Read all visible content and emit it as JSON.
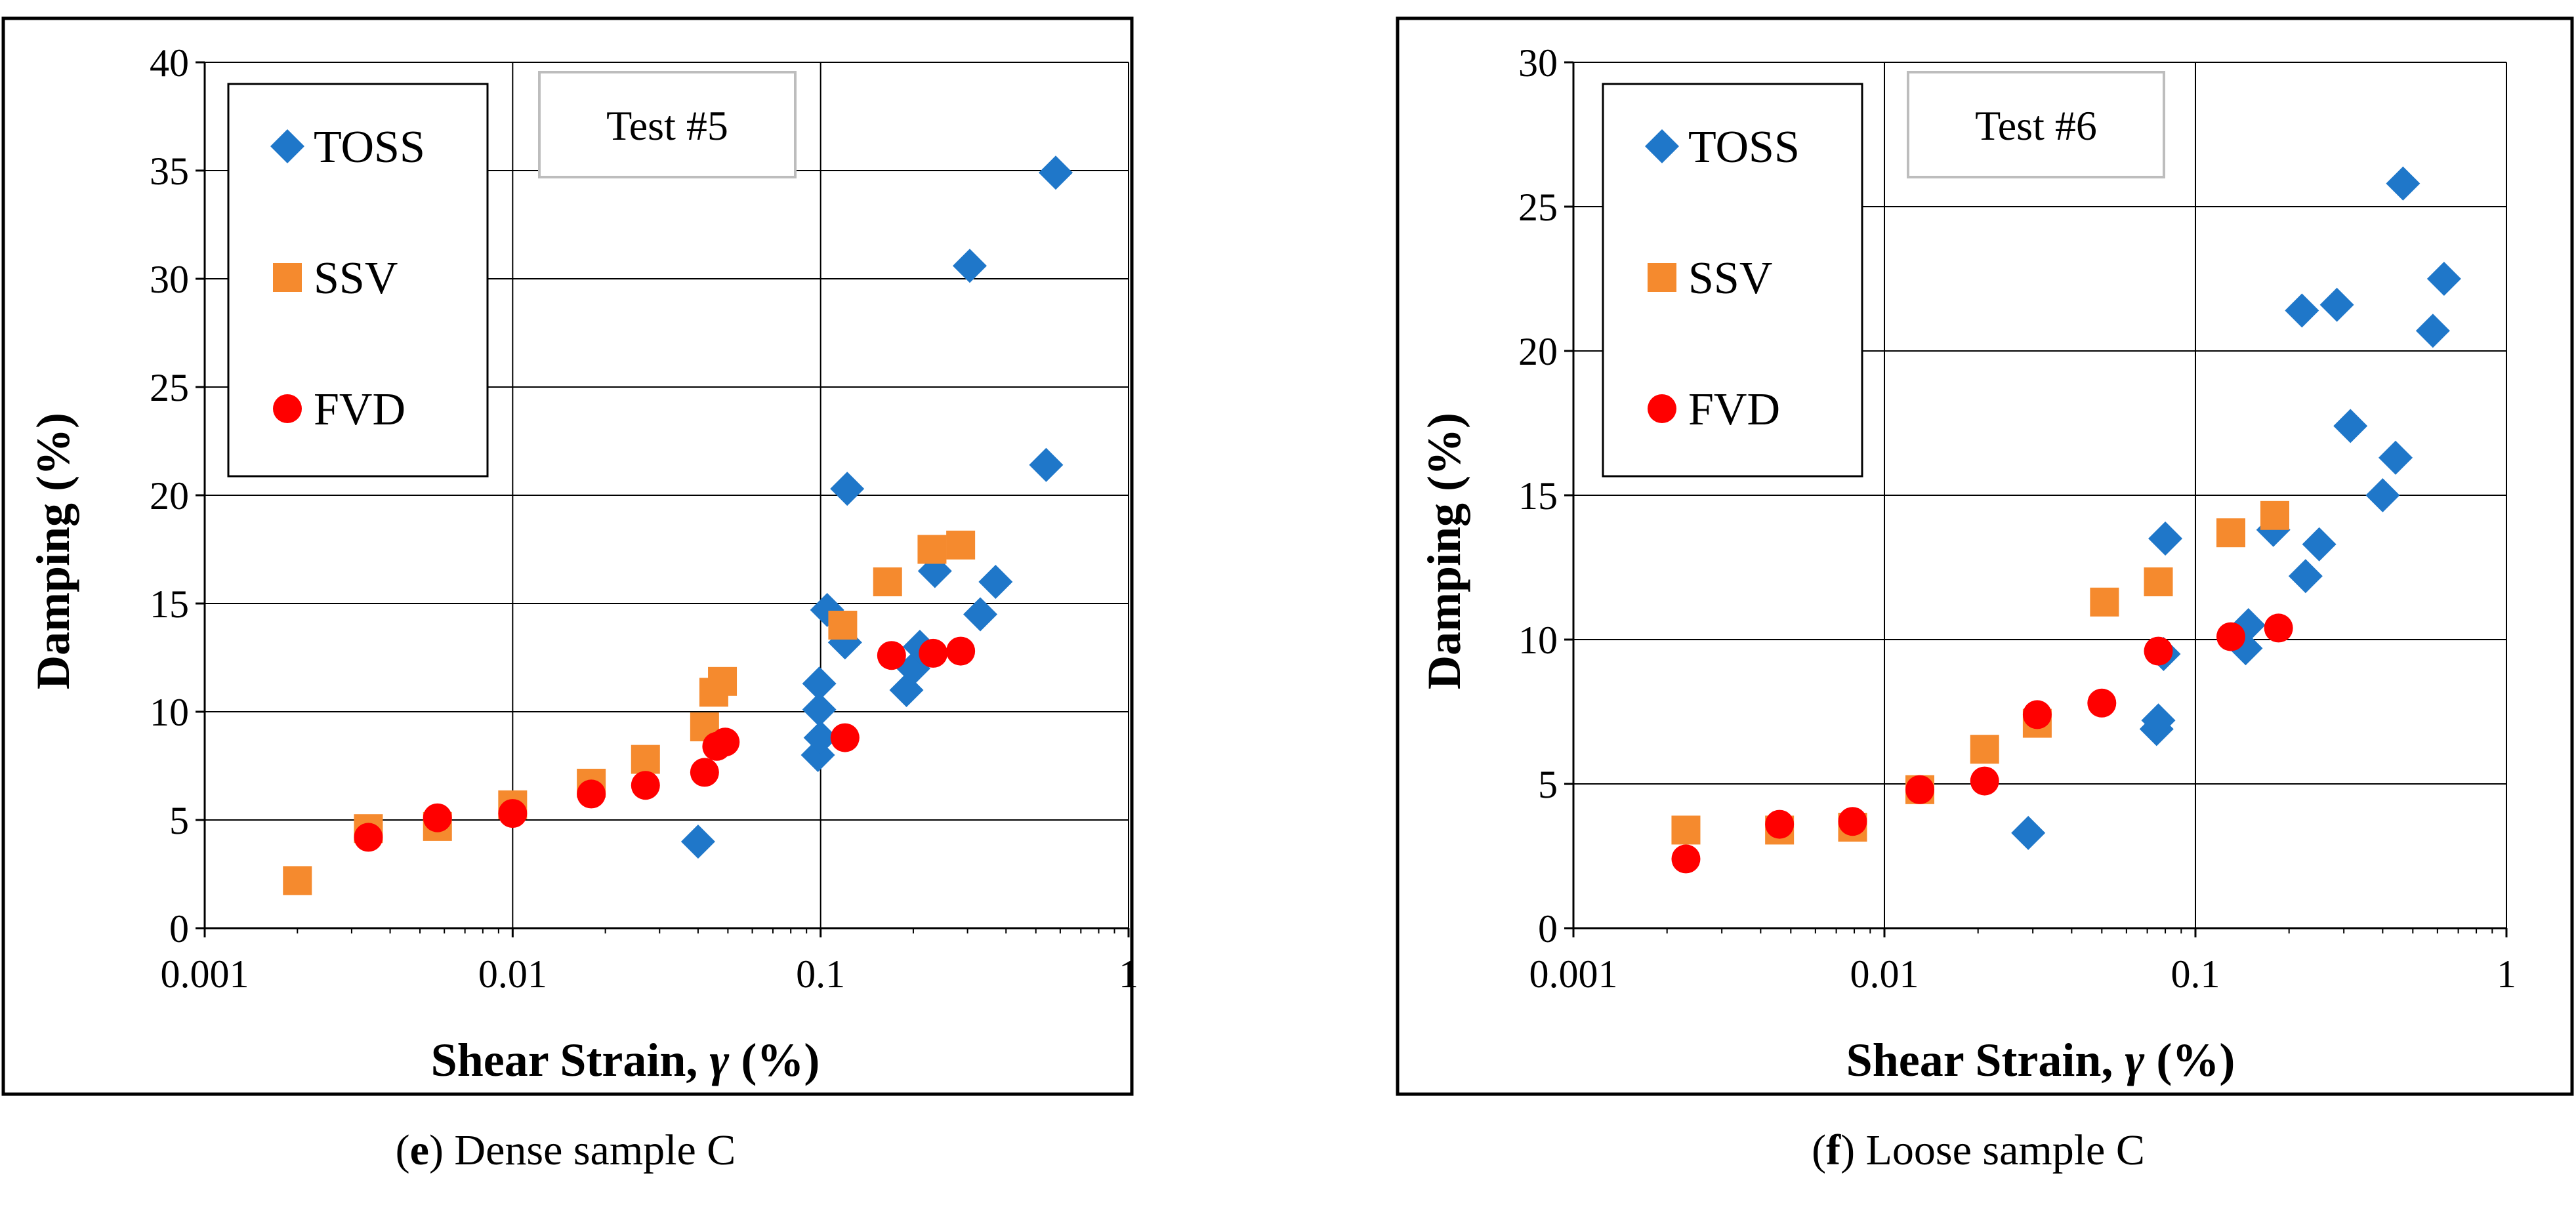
{
  "chart_data": [
    {
      "type": "scatter",
      "panel_label": "e",
      "caption": "Dense sample C",
      "test_label": "Test #5",
      "xlabel": "Shear Strain, ",
      "xlabel_symbol": "γ",
      "xlabel_unit": " (%)",
      "ylabel": "Damping  (%)",
      "xscale": "log",
      "xlim": [
        0.001,
        1
      ],
      "ylim": [
        0,
        40
      ],
      "xticks": [
        "0.001",
        "0.01",
        "0.1",
        "1"
      ],
      "yticks": [
        "0",
        "5",
        "10",
        "15",
        "20",
        "25",
        "30",
        "35",
        "40"
      ],
      "grid": true,
      "legend_position": "top-left",
      "series": [
        {
          "name": "TOSS",
          "marker": "diamond",
          "color": "#1f77c9",
          "x": [
            0.04,
            0.098,
            0.099,
            0.099,
            0.1,
            0.105,
            0.12,
            0.122,
            0.19,
            0.2,
            0.21,
            0.235,
            0.305,
            0.33,
            0.37,
            0.54,
            0.58
          ],
          "y": [
            4.0,
            8.0,
            10.1,
            11.3,
            8.8,
            14.7,
            13.2,
            20.3,
            11.0,
            12.0,
            13.0,
            16.5,
            30.6,
            14.5,
            16.0,
            21.4,
            34.9
          ]
        },
        {
          "name": "SSV",
          "marker": "square",
          "color": "#f58a2e",
          "x": [
            0.002,
            0.0034,
            0.0057,
            0.01,
            0.018,
            0.027,
            0.042,
            0.045,
            0.048,
            0.118,
            0.165,
            0.23,
            0.285
          ],
          "y": [
            2.2,
            4.6,
            4.7,
            5.7,
            6.7,
            7.8,
            9.3,
            10.9,
            11.4,
            14.0,
            16.0,
            17.5,
            17.7
          ]
        },
        {
          "name": "FVD",
          "marker": "circle",
          "color": "#ff0000",
          "x": [
            0.0034,
            0.0057,
            0.01,
            0.018,
            0.027,
            0.042,
            0.046,
            0.049,
            0.12,
            0.17,
            0.232,
            0.285
          ],
          "y": [
            4.2,
            5.1,
            5.3,
            6.2,
            6.6,
            7.2,
            8.4,
            8.6,
            8.8,
            12.6,
            12.7,
            12.8
          ]
        }
      ]
    },
    {
      "type": "scatter",
      "panel_label": "f",
      "caption": "Loose sample C",
      "test_label": "Test #6",
      "xlabel": "Shear Strain, ",
      "xlabel_symbol": "γ",
      "xlabel_unit": " (%)",
      "ylabel": "Damping  (%)",
      "xscale": "log",
      "xlim": [
        0.001,
        1
      ],
      "ylim": [
        0,
        30
      ],
      "xticks": [
        "0.001",
        "0.01",
        "0.1",
        "1"
      ],
      "yticks": [
        "0",
        "5",
        "10",
        "15",
        "20",
        "25",
        "30"
      ],
      "grid": true,
      "legend_position": "top-left",
      "series": [
        {
          "name": "TOSS",
          "marker": "diamond",
          "color": "#1f77c9",
          "x": [
            0.029,
            0.075,
            0.076,
            0.079,
            0.08,
            0.145,
            0.148,
            0.178,
            0.22,
            0.226,
            0.25,
            0.285,
            0.315,
            0.4,
            0.44,
            0.465,
            0.58,
            0.63
          ],
          "y": [
            3.3,
            6.9,
            7.2,
            9.5,
            13.5,
            9.7,
            10.5,
            13.8,
            21.4,
            12.2,
            13.3,
            21.6,
            17.4,
            15.0,
            16.3,
            25.8,
            20.7,
            22.5
          ]
        },
        {
          "name": "SSV",
          "marker": "square",
          "color": "#f58a2e",
          "x": [
            0.0023,
            0.0046,
            0.0079,
            0.013,
            0.021,
            0.031,
            0.051,
            0.076,
            0.13,
            0.18
          ],
          "y": [
            3.4,
            3.4,
            3.5,
            4.8,
            6.2,
            7.1,
            11.3,
            12.0,
            13.7,
            14.3
          ]
        },
        {
          "name": "FVD",
          "marker": "circle",
          "color": "#ff0000",
          "x": [
            0.0023,
            0.0046,
            0.0079,
            0.013,
            0.021,
            0.031,
            0.05,
            0.076,
            0.13,
            0.185
          ],
          "y": [
            2.4,
            3.6,
            3.7,
            4.8,
            5.1,
            7.4,
            7.8,
            9.6,
            10.1,
            10.4
          ]
        }
      ]
    }
  ]
}
